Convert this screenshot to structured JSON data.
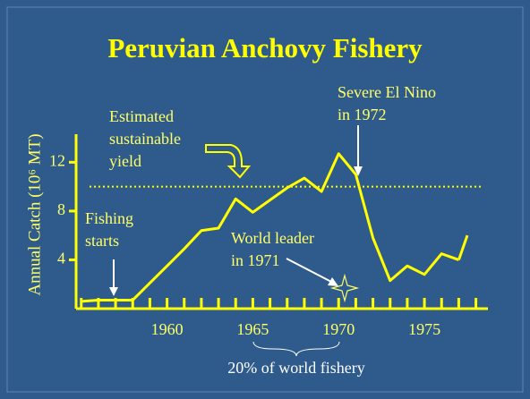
{
  "chart_data": {
    "type": "line",
    "title": "Peruvian Anchovy Fishery",
    "y_label": "Annual Catch (10⁶ MT)",
    "x": [
      1955,
      1956,
      1957,
      1958,
      1959,
      1960,
      1961,
      1962,
      1963,
      1964,
      1965,
      1966,
      1967,
      1968,
      1969,
      1970,
      1971,
      1972,
      1973,
      1974,
      1975,
      1976,
      1977
    ],
    "series": [
      {
        "name": "Annual Catch",
        "color": "#ffff00",
        "values": [
          0.6,
          0.7,
          0.7,
          0.7,
          2.1,
          3.5,
          4.9,
          6.4,
          6.6,
          9.0,
          7.9,
          8.9,
          9.9,
          10.7,
          9.6,
          12.7,
          11.0,
          5.8,
          2.3,
          3.5,
          2.8,
          4.5,
          4.0
        ]
      }
    ],
    "last_value": 6.0,
    "xlim": [
      1954.7,
      1978.7
    ],
    "ylim": [
      0,
      14.3
    ],
    "xticks": [
      1960,
      1965,
      1970,
      1975
    ],
    "minor_xticks": [
      1955,
      1956,
      1957,
      1958,
      1959,
      1960,
      1961,
      1962,
      1963,
      1964,
      1965,
      1966,
      1967,
      1968,
      1969,
      1970,
      1971,
      1972,
      1973,
      1974,
      1975,
      1976,
      1977,
      1978
    ],
    "yticks": [
      4,
      8,
      12
    ],
    "sustainable_yield": 10,
    "annotations": [
      {
        "lines": [
          "Estimated",
          "sustainable",
          "yield"
        ]
      },
      {
        "lines": [
          "Fishing",
          "starts"
        ]
      },
      {
        "lines": [
          "World leader",
          "in 1971"
        ]
      },
      {
        "lines": [
          "Severe El Nino",
          "in 1972"
        ]
      },
      {
        "lines": [
          "20% of world fishery"
        ]
      }
    ],
    "grid": false
  }
}
